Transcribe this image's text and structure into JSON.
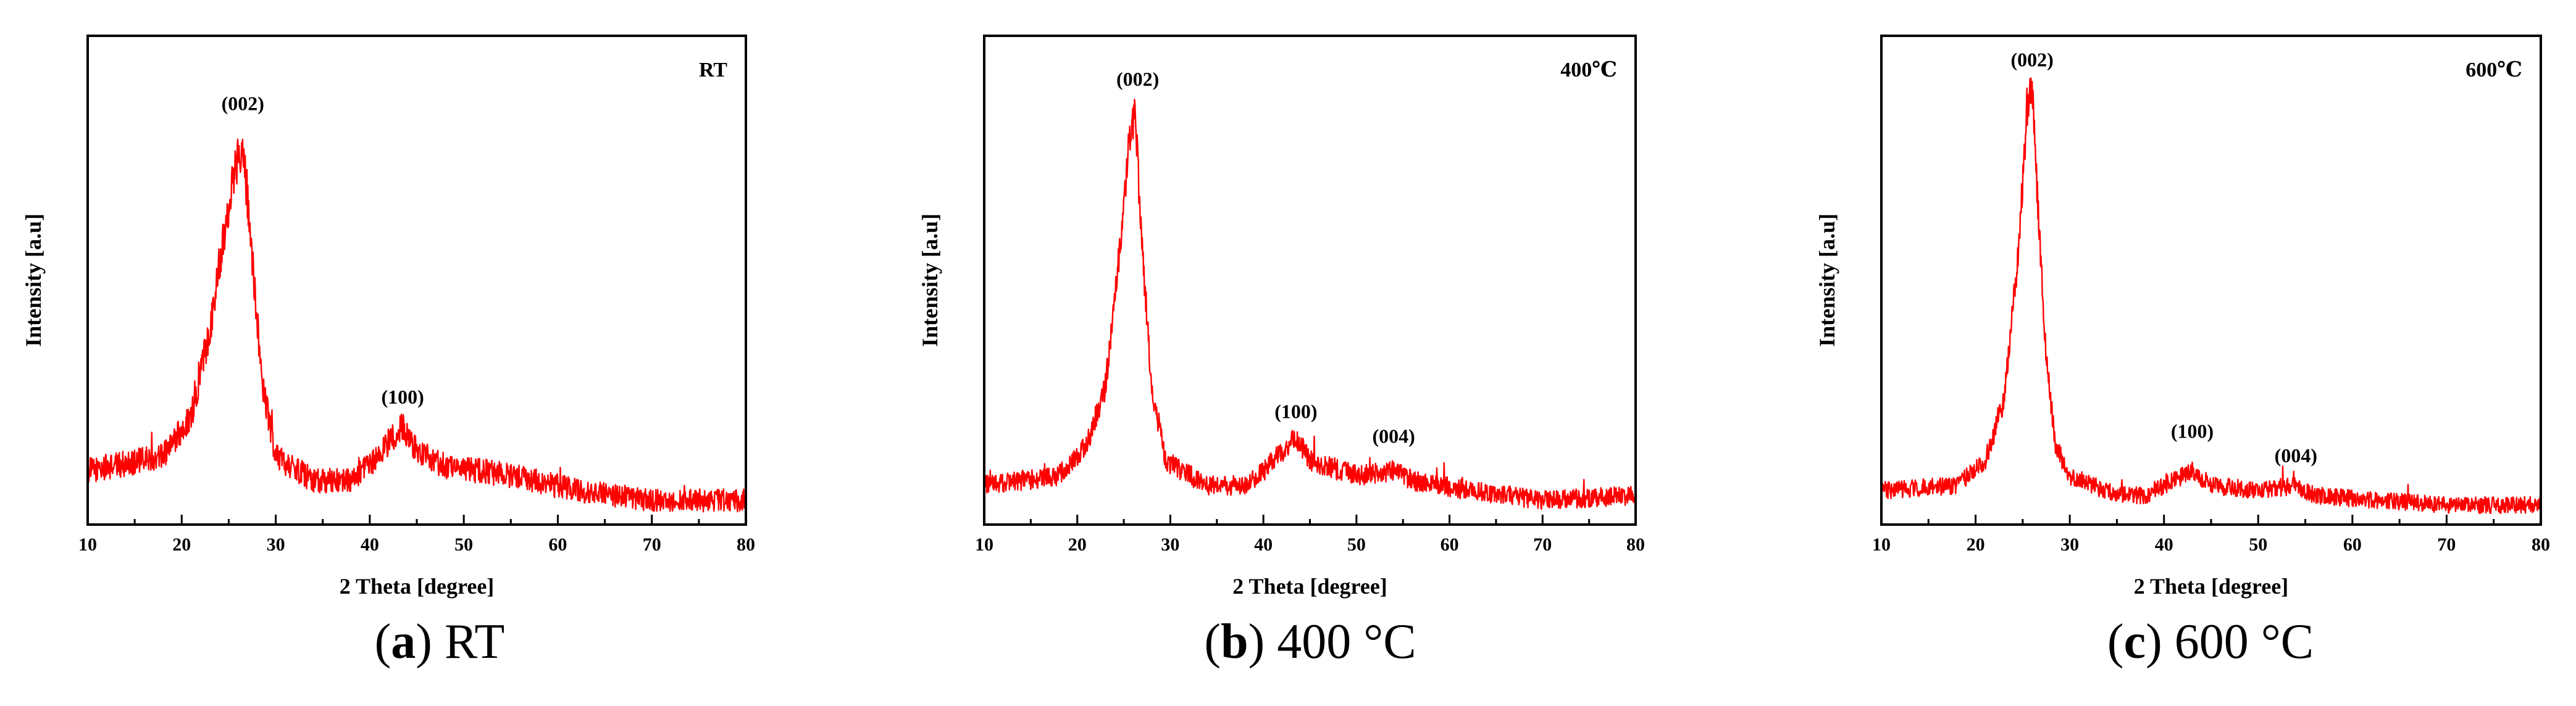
{
  "chart_data": [
    {
      "type": "line",
      "panel_letter": "a",
      "caption_rest": " RT",
      "corner_label": "RT",
      "xlabel": "2 Theta [degree]",
      "ylabel": "Intensity [a.u]",
      "xlim": [
        10,
        80
      ],
      "ylim": [
        0,
        100
      ],
      "x_ticks": [
        "10",
        "20",
        "30",
        "40",
        "50",
        "60",
        "70",
        "80"
      ],
      "series_color": "#ff0000",
      "baseline": [
        [
          10,
          11
        ],
        [
          18,
          14
        ],
        [
          21,
          22
        ],
        [
          23,
          40
        ],
        [
          24.5,
          60
        ],
        [
          26,
          76
        ],
        [
          26.5,
          78
        ],
        [
          27.3,
          60
        ],
        [
          28.5,
          30
        ],
        [
          30,
          14
        ],
        [
          34,
          9
        ],
        [
          38,
          9
        ],
        [
          40,
          12
        ],
        [
          42.5,
          18
        ],
        [
          43.5,
          20
        ],
        [
          45,
          15
        ],
        [
          48,
          12
        ],
        [
          55,
          10
        ],
        [
          62,
          7
        ],
        [
          70,
          5
        ],
        [
          80,
          5
        ]
      ],
      "noise_amplitude": 2.2,
      "peaks": [
        {
          "label": "(002)",
          "x": 26.5,
          "y": 84
        },
        {
          "label": "(100)",
          "x": 43.5,
          "y": 24
        }
      ]
    },
    {
      "type": "line",
      "panel_letter": "b",
      "caption_rest": " 400 °C",
      "corner_label": "400℃",
      "xlabel": "2 Theta [degree]",
      "ylabel": "Intensity [a.u]",
      "xlim": [
        10,
        80
      ],
      "ylim": [
        0,
        100
      ],
      "x_ticks": [
        "10",
        "20",
        "30",
        "40",
        "50",
        "60",
        "70",
        "80"
      ],
      "series_color": "#ff0000",
      "baseline": [
        [
          10,
          8
        ],
        [
          18,
          10
        ],
        [
          21,
          16
        ],
        [
          23,
          28
        ],
        [
          24.5,
          55
        ],
        [
          25.5,
          76
        ],
        [
          26.2,
          84
        ],
        [
          27,
          56
        ],
        [
          28,
          28
        ],
        [
          29.5,
          13
        ],
        [
          34,
          8
        ],
        [
          38,
          8
        ],
        [
          40,
          11
        ],
        [
          42,
          15
        ],
        [
          43.5,
          18
        ],
        [
          45,
          13
        ],
        [
          50,
          10
        ],
        [
          54,
          11
        ],
        [
          56,
          9
        ],
        [
          62,
          7
        ],
        [
          70,
          5
        ],
        [
          80,
          6
        ]
      ],
      "noise_amplitude": 1.8,
      "peaks": [
        {
          "label": "(002)",
          "x": 26.5,
          "y": 89
        },
        {
          "label": "(100)",
          "x": 43.5,
          "y": 21
        },
        {
          "label": "(004)",
          "x": 54,
          "y": 16
        }
      ]
    },
    {
      "type": "line",
      "panel_letter": "c",
      "caption_rest": " 600 °C",
      "corner_label": "600℃",
      "xlabel": "2 Theta [degree]",
      "ylabel": "Intensity [a.u]",
      "xlim": [
        10,
        80
      ],
      "ylim": [
        0,
        100
      ],
      "x_ticks": [
        "10",
        "20",
        "30",
        "40",
        "50",
        "60",
        "70",
        "80"
      ],
      "series_color": "#ff0000",
      "baseline": [
        [
          10,
          7
        ],
        [
          18,
          8
        ],
        [
          21,
          13
        ],
        [
          23,
          25
        ],
        [
          24.5,
          55
        ],
        [
          25.5,
          85
        ],
        [
          26,
          90
        ],
        [
          26.7,
          62
        ],
        [
          27.5,
          34
        ],
        [
          28.5,
          16
        ],
        [
          30,
          10
        ],
        [
          35,
          6
        ],
        [
          38,
          6
        ],
        [
          40,
          8
        ],
        [
          43,
          11
        ],
        [
          45,
          8
        ],
        [
          50,
          7
        ],
        [
          54,
          8
        ],
        [
          56,
          6
        ],
        [
          62,
          5
        ],
        [
          70,
          4
        ],
        [
          80,
          4
        ]
      ],
      "noise_amplitude": 1.6,
      "peaks": [
        {
          "label": "(002)",
          "x": 26,
          "y": 93
        },
        {
          "label": "(100)",
          "x": 43,
          "y": 17
        },
        {
          "label": "(004)",
          "x": 54,
          "y": 12
        }
      ]
    }
  ]
}
